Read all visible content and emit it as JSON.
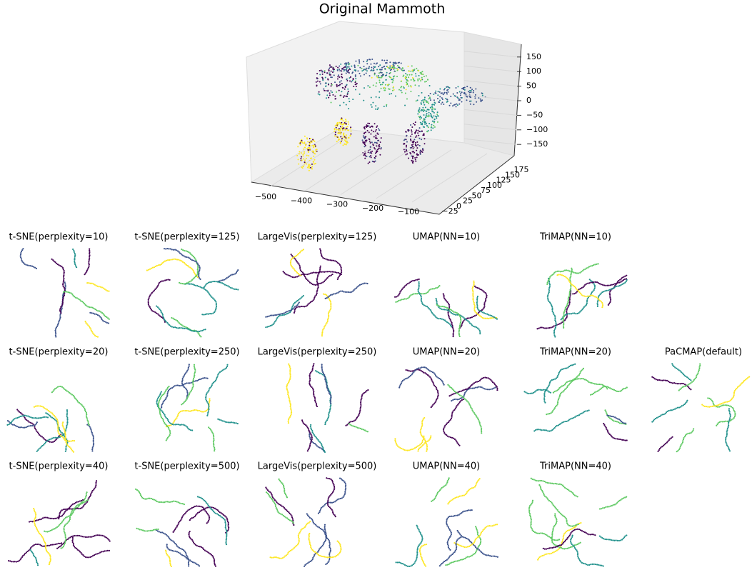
{
  "chart_data": [
    {
      "type": "scatter3d",
      "title": "Original Mammoth",
      "grid": true,
      "xticks": [
        {
          "value": -500,
          "label": "−500"
        },
        {
          "value": -400,
          "label": "−400"
        },
        {
          "value": -300,
          "label": "−300"
        },
        {
          "value": -200,
          "label": "−200"
        },
        {
          "value": -100,
          "label": "−100"
        }
      ],
      "yticks": [
        {
          "value": -25,
          "label": "−25"
        },
        0,
        25,
        50,
        75,
        100,
        125,
        150,
        175
      ],
      "zticks": [
        150,
        100,
        50,
        0,
        {
          "value": -50,
          "label": "−50"
        },
        {
          "value": -100,
          "label": "−100"
        },
        {
          "value": -150,
          "label": "−150"
        }
      ]
    },
    {
      "type": "scatter",
      "title": "t-SNE(perplexity=10)"
    },
    {
      "type": "scatter",
      "title": "t-SNE(perplexity=125)"
    },
    {
      "type": "scatter",
      "title": "LargeVis(perplexity=125)"
    },
    {
      "type": "scatter",
      "title": "UMAP(NN=10)"
    },
    {
      "type": "scatter",
      "title": "TriMAP(NN=10)"
    },
    {
      "type": "scatter",
      "title": "t-SNE(perplexity=20)"
    },
    {
      "type": "scatter",
      "title": "t-SNE(perplexity=250)"
    },
    {
      "type": "scatter",
      "title": "LargeVis(perplexity=250)"
    },
    {
      "type": "scatter",
      "title": "UMAP(NN=20)"
    },
    {
      "type": "scatter",
      "title": "TriMAP(NN=20)"
    },
    {
      "type": "scatter",
      "title": "PaCMAP(default)"
    },
    {
      "type": "scatter",
      "title": "t-SNE(perplexity=40)"
    },
    {
      "type": "scatter",
      "title": "t-SNE(perplexity=500)"
    },
    {
      "type": "scatter",
      "title": "LargeVis(perplexity=500)"
    },
    {
      "type": "scatter",
      "title": "UMAP(NN=40)"
    },
    {
      "type": "scatter",
      "title": "TriMAP(NN=40)"
    }
  ]
}
